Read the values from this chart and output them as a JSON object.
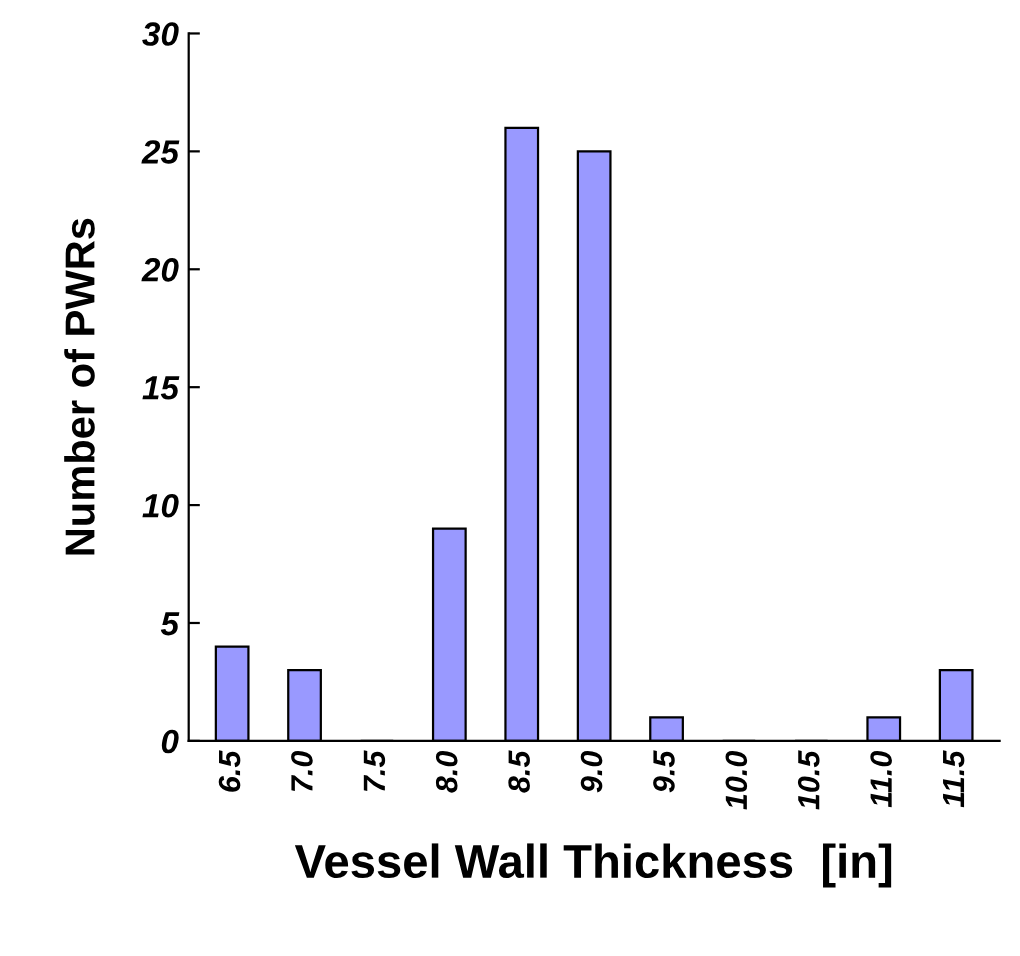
{
  "chart_data": {
    "type": "bar",
    "xlabel": "Vessel Wall Thickness  [in]",
    "ylabel": "Number of PWRs",
    "categories": [
      "6.5",
      "7.0",
      "7.5",
      "8.0",
      "8.5",
      "9.0",
      "9.5",
      "10.0",
      "10.5",
      "11.0",
      "11.5"
    ],
    "values": [
      4,
      3,
      0,
      9,
      26,
      25,
      1,
      0,
      0,
      1,
      3
    ],
    "color": "#9999ff",
    "ylim": [
      0,
      30
    ],
    "yticks": [
      0,
      5,
      10,
      15,
      20,
      25,
      30
    ],
    "grid": false
  }
}
